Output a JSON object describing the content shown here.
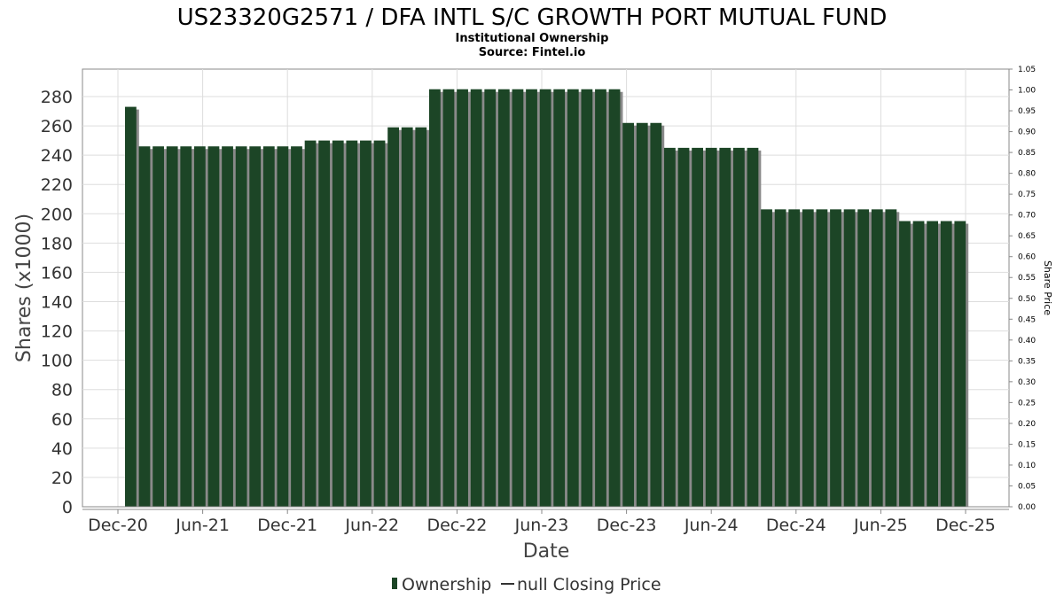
{
  "chart_data": {
    "type": "bar",
    "title": "US23320G2571 / DFA INTL S/C GROWTH PORT MUTUAL FUND",
    "subtitle_lines": [
      "Institutional Ownership",
      "Source: Fintel.io"
    ],
    "xlabel": "Date",
    "ylabel": "Shares (x1000)",
    "y2label": "Share Price",
    "ylim": [
      0,
      300
    ],
    "y2lim": [
      0,
      1.05
    ],
    "yticks": [
      0,
      20,
      40,
      60,
      80,
      100,
      120,
      140,
      160,
      180,
      200,
      220,
      240,
      260,
      280
    ],
    "y2ticks": [
      "0.00",
      "0.05",
      "0.10",
      "0.15",
      "0.20",
      "0.25",
      "0.30",
      "0.35",
      "0.40",
      "0.45",
      "0.50",
      "0.55",
      "0.60",
      "0.65",
      "0.70",
      "0.75",
      "0.80",
      "0.85",
      "0.90",
      "0.95",
      "1.00",
      "1.05"
    ],
    "xticks": [
      "Dec-20",
      "Jun-21",
      "Dec-21",
      "Jun-22",
      "Dec-22",
      "Jun-23",
      "Dec-23",
      "Jun-24",
      "Dec-24",
      "Jun-25",
      "Dec-25"
    ],
    "grid": true,
    "legend_position": "bottom",
    "series": [
      {
        "name": "Ownership",
        "color": "#1c4526",
        "values": [
          273,
          246,
          246,
          246,
          246,
          246,
          246,
          246,
          246,
          246,
          246,
          246,
          246,
          250,
          250,
          250,
          250,
          250,
          250,
          259,
          259,
          259,
          285,
          285,
          285,
          285,
          285,
          285,
          285,
          285,
          285,
          285,
          285,
          285,
          285,
          285,
          262,
          262,
          262,
          245,
          245,
          245,
          245,
          245,
          245,
          245,
          203,
          203,
          203,
          203,
          203,
          203,
          203,
          203,
          203,
          203,
          195,
          195,
          195,
          195,
          195
        ]
      },
      {
        "name": "null Closing Price",
        "color": "#333333",
        "values": []
      }
    ]
  }
}
